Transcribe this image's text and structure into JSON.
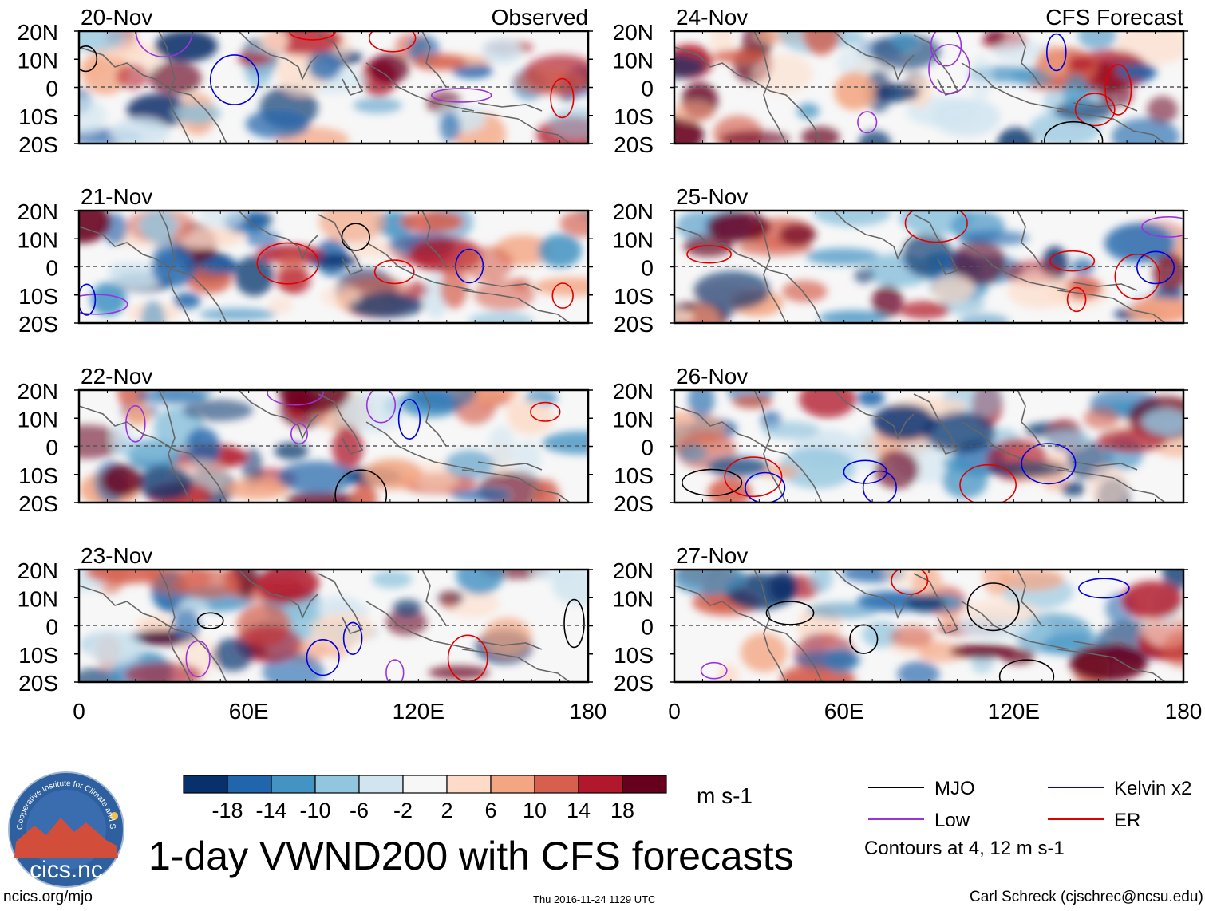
{
  "panels": [
    {
      "date": "20-Nov",
      "tag": "Observed"
    },
    {
      "date": "21-Nov",
      "tag": ""
    },
    {
      "date": "22-Nov",
      "tag": ""
    },
    {
      "date": "23-Nov",
      "tag": ""
    },
    {
      "date": "24-Nov",
      "tag": "CFS Forecast"
    },
    {
      "date": "25-Nov",
      "tag": ""
    },
    {
      "date": "26-Nov",
      "tag": ""
    },
    {
      "date": "27-Nov",
      "tag": ""
    }
  ],
  "lat_labels": [
    "20N",
    "10N",
    "0",
    "10S",
    "20S"
  ],
  "lon_labels": [
    "0",
    "60E",
    "120E",
    "180"
  ],
  "colorbar": {
    "colors": [
      "#08306b",
      "#2166ac",
      "#4393c3",
      "#92c5de",
      "#d1e5f0",
      "#f7f7f7",
      "#fddbc7",
      "#f4a582",
      "#d6604d",
      "#b2182b",
      "#67001f"
    ],
    "ticks": [
      "-18",
      "-14",
      "-10",
      "-6",
      "-2",
      "2",
      "6",
      "10",
      "14",
      "18"
    ],
    "units": "m s-1"
  },
  "legend": {
    "items": [
      {
        "label": "MJO",
        "color": "#000000"
      },
      {
        "label": "Kelvin x2",
        "color": "#0000dd"
      },
      {
        "label": "Low",
        "color": "#9933dd"
      },
      {
        "label": "ER",
        "color": "#e00000"
      }
    ],
    "note": "Contours at 4, 12 m s-1"
  },
  "logo": {
    "text": "cics.nc",
    "ring_text": "Cooperative Institute for Climate and Satellites"
  },
  "title": "1-day VWND200 with CFS forecasts",
  "footer": {
    "left": "ncics.org/mjo",
    "center": "Thu 2016-11-24 1129 UTC",
    "right": "Carl Schreck (cjschrec@ncsu.edu)"
  }
}
